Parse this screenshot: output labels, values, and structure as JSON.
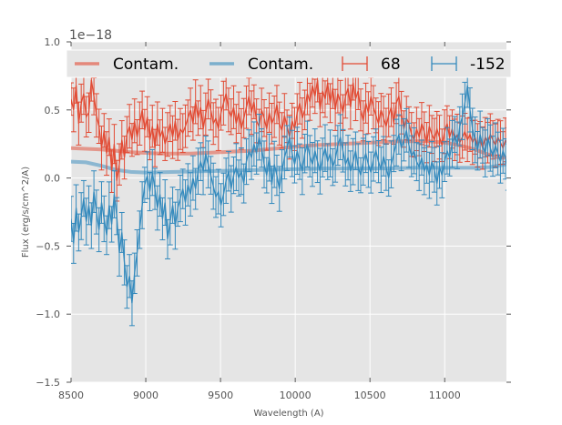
{
  "chart_data": {
    "type": "line",
    "title": "",
    "xlabel": "Wavelength (A)",
    "ylabel": "Flux (erg/s/cm^2/A)",
    "y_offset_label": "1e−18",
    "y_scale": 1e-18,
    "xlim": [
      8500,
      11413
    ],
    "ylim": [
      -1.5,
      1.0
    ],
    "grid": true,
    "x_ticks": [
      8500,
      9000,
      9500,
      10000,
      10500,
      11000
    ],
    "x_tick_labels": [
      "8500",
      "9000",
      "9500",
      "10000",
      "10500",
      "11000"
    ],
    "y_ticks": [
      -1.5,
      -1.0,
      -0.5,
      0.0,
      0.5,
      1.0
    ],
    "y_tick_labels": [
      "−1.5",
      "−1.0",
      "−0.5",
      "0.0",
      "0.5",
      "1.0"
    ],
    "legend": {
      "placement": "top",
      "columns": 4,
      "entries": [
        {
          "label": "Contam.",
          "kind": "line",
          "color": "#E24A33"
        },
        {
          "label": "Contam.",
          "kind": "line",
          "color": "#348ABD"
        },
        {
          "label": "68",
          "kind": "errorbar",
          "color": "#E24A33"
        },
        {
          "label": "-152",
          "kind": "errorbar",
          "color": "#348ABD"
        }
      ]
    },
    "colors": {
      "background": "#E5E5E5",
      "grid": "#FFFFFF",
      "red": "#E24A33",
      "blue": "#348ABD",
      "tick": "#555555"
    },
    "x_start": 8500,
    "x_step": 17,
    "series": [
      {
        "name": "68",
        "kind": "errorbar",
        "color": "#E24A33",
        "y": [
          0.58,
          0.5,
          0.68,
          0.4,
          0.55,
          0.62,
          0.45,
          0.48,
          0.72,
          0.6,
          0.46,
          0.38,
          0.22,
          0.35,
          0.18,
          0.3,
          0.05,
          0.25,
          -0.02,
          0.1,
          0.28,
          0.15,
          0.32,
          0.38,
          0.28,
          0.42,
          0.3,
          0.4,
          0.5,
          0.35,
          0.45,
          0.28,
          0.38,
          0.22,
          0.4,
          0.3,
          0.35,
          0.25,
          0.32,
          0.4,
          0.3,
          0.42,
          0.28,
          0.36,
          0.33,
          0.38,
          0.44,
          0.5,
          0.4,
          0.56,
          0.44,
          0.52,
          0.36,
          0.47,
          0.58,
          0.5,
          0.4,
          0.44,
          0.36,
          0.48,
          0.55,
          0.62,
          0.5,
          0.45,
          0.52,
          0.4,
          0.48,
          0.36,
          0.44,
          0.52,
          0.6,
          0.48,
          0.56,
          0.42,
          0.38,
          0.5,
          0.44,
          0.36,
          0.48,
          0.4,
          0.45,
          0.54,
          0.4,
          0.35,
          0.46,
          0.38,
          0.3,
          0.42,
          0.36,
          0.48,
          0.55,
          0.44,
          0.5,
          0.62,
          0.56,
          0.68,
          0.6,
          0.72,
          0.5,
          0.64,
          0.58,
          0.7,
          0.55,
          0.66,
          0.5,
          0.62,
          0.56,
          0.48,
          0.6,
          0.66,
          0.52,
          0.7,
          0.58,
          0.64,
          0.5,
          0.42,
          0.55,
          0.48,
          0.6,
          0.52,
          0.46,
          0.4,
          0.5,
          0.44,
          0.38,
          0.46,
          0.52,
          0.4,
          0.55,
          0.6,
          0.48,
          0.36,
          0.44,
          0.4,
          0.32,
          0.28,
          0.36,
          0.3,
          0.4,
          0.34,
          0.26,
          0.38,
          0.32,
          0.28,
          0.36,
          0.3,
          0.24,
          0.34,
          0.4,
          0.3,
          0.36,
          0.28,
          0.32,
          0.26,
          0.3,
          0.34,
          0.28,
          0.32,
          0.26,
          0.3,
          0.24,
          0.28,
          0.22,
          0.3,
          0.26,
          0.32,
          0.28,
          0.24,
          0.3,
          0.26,
          0.22,
          0.28,
          0.24,
          0.2
        ],
        "err": 0.14
      },
      {
        "name": "-152",
        "kind": "errorbar",
        "color": "#348ABD",
        "y": [
          -0.3,
          -0.48,
          -0.22,
          -0.4,
          -0.28,
          -0.15,
          -0.32,
          -0.2,
          -0.35,
          -0.1,
          -0.25,
          -0.38,
          -0.18,
          -0.3,
          -0.42,
          -0.2,
          -0.34,
          -0.12,
          -0.28,
          -0.55,
          -0.4,
          -0.62,
          -0.8,
          -0.72,
          -0.92,
          -0.7,
          -0.55,
          -0.38,
          -0.2,
          -0.05,
          0.02,
          -0.1,
          0.04,
          -0.08,
          -0.22,
          -0.12,
          -0.3,
          -0.18,
          -0.45,
          -0.32,
          -0.2,
          -0.35,
          -0.22,
          -0.15,
          -0.08,
          -0.18,
          -0.05,
          -0.12,
          0.0,
          -0.08,
          0.05,
          0.12,
          0.05,
          0.18,
          0.1,
          0.02,
          -0.06,
          -0.14,
          -0.1,
          -0.2,
          -0.12,
          -0.02,
          0.05,
          -0.08,
          0.02,
          0.08,
          0.0,
          0.05,
          -0.04,
          0.12,
          0.2,
          0.15,
          0.25,
          0.18,
          0.3,
          0.22,
          0.1,
          0.02,
          0.15,
          -0.05,
          0.1,
          0.02,
          -0.08,
          0.05,
          0.15,
          0.22,
          0.3,
          0.18,
          0.1,
          0.2,
          0.12,
          0.05,
          0.18,
          0.25,
          0.16,
          0.1,
          0.2,
          0.12,
          0.05,
          0.15,
          0.22,
          0.12,
          0.18,
          0.08,
          0.14,
          0.24,
          0.3,
          0.2,
          0.1,
          0.15,
          0.05,
          0.12,
          0.2,
          0.08,
          0.02,
          0.12,
          0.18,
          0.1,
          0.04,
          0.14,
          0.2,
          0.12,
          0.06,
          0.16,
          0.08,
          0.0,
          0.1,
          0.18,
          0.26,
          0.32,
          0.22,
          0.28,
          0.35,
          0.24,
          0.16,
          0.2,
          0.12,
          0.08,
          0.15,
          0.05,
          0.1,
          0.02,
          0.12,
          0.06,
          -0.04,
          0.08,
          0.02,
          0.12,
          0.2,
          0.15,
          0.25,
          0.32,
          0.24,
          0.38,
          0.45,
          0.55,
          0.68,
          0.5,
          0.36,
          0.28,
          0.2,
          0.32,
          0.24,
          0.18,
          0.3,
          0.22,
          0.16,
          0.24,
          0.18,
          0.12,
          0.2,
          0.14,
          0.08,
          0.16,
          0.1,
          0.06
        ],
        "err": 0.15
      },
      {
        "name": "Contam. (68)",
        "kind": "line",
        "color": "#E24A33",
        "points": [
          [
            8500,
            0.22
          ],
          [
            8700,
            0.21
          ],
          [
            8900,
            0.19
          ],
          [
            9100,
            0.18
          ],
          [
            9300,
            0.18
          ],
          [
            9500,
            0.19
          ],
          [
            9700,
            0.2
          ],
          [
            9900,
            0.22
          ],
          [
            10100,
            0.24
          ],
          [
            10300,
            0.25
          ],
          [
            10500,
            0.26
          ],
          [
            10700,
            0.27
          ],
          [
            10900,
            0.27
          ],
          [
            11000,
            0.26
          ],
          [
            11100,
            0.24
          ],
          [
            11200,
            0.21
          ],
          [
            11300,
            0.17
          ],
          [
            11360,
            0.15
          ],
          [
            11413,
            0.15
          ]
        ]
      },
      {
        "name": "Contam. (-152)",
        "kind": "line",
        "color": "#348ABD",
        "points": [
          [
            8500,
            0.12
          ],
          [
            8600,
            0.115
          ],
          [
            8700,
            0.09
          ],
          [
            8800,
            0.06
          ],
          [
            8900,
            0.045
          ],
          [
            9000,
            0.04
          ],
          [
            9200,
            0.045
          ],
          [
            9400,
            0.05
          ],
          [
            9600,
            0.055
          ],
          [
            9800,
            0.06
          ],
          [
            10000,
            0.065
          ],
          [
            10200,
            0.07
          ],
          [
            10400,
            0.07
          ],
          [
            10600,
            0.07
          ],
          [
            10800,
            0.075
          ],
          [
            11000,
            0.075
          ],
          [
            11200,
            0.075
          ],
          [
            11300,
            0.08
          ],
          [
            11413,
            0.1
          ]
        ]
      }
    ]
  }
}
